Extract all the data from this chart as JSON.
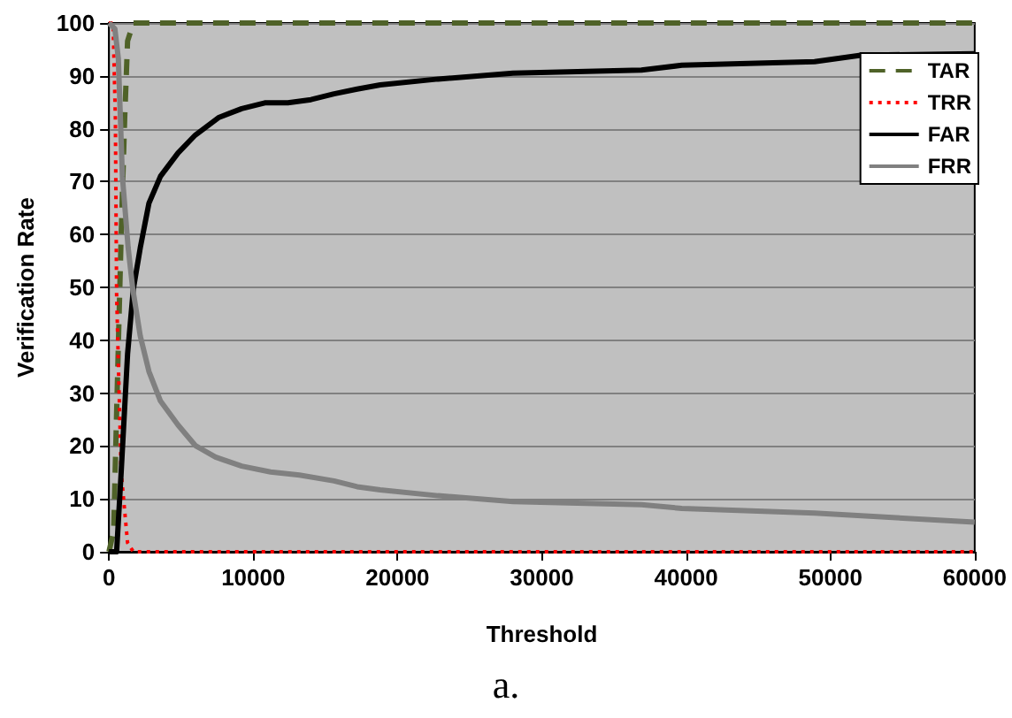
{
  "chart_data": {
    "type": "line",
    "xlabel": "Threshold",
    "ylabel": "Verification Rate",
    "annotations": [
      "a."
    ],
    "xlim": [
      0,
      60000
    ],
    "xticks": [
      0,
      10000,
      20000,
      30000,
      40000,
      50000,
      60000
    ],
    "ylim": [
      0,
      100
    ],
    "yticks": [
      0,
      10,
      20,
      30,
      40,
      50,
      60,
      70,
      80,
      90,
      100
    ],
    "grid": "y",
    "legend": "top right",
    "series": [
      {
        "name": "TAR",
        "color": "#4f6228",
        "line_style": "dashed",
        "x": [
          0,
          325,
          530,
          845,
          1090,
          1290,
          1690,
          60000
        ],
        "values": [
          0,
          3.9,
          26.3,
          59.8,
          82,
          96.6,
          100,
          100
        ]
      },
      {
        "name": "TRR",
        "color": "#ff0000",
        "line_style": "dotted",
        "x": [
          0,
          285,
          445,
          530,
          845,
          1290,
          1690,
          60000
        ],
        "values": [
          100,
          100,
          82,
          48.6,
          15,
          1.7,
          0,
          0
        ]
      },
      {
        "name": "FAR",
        "color": "#000000",
        "line_style": "solid",
        "x": [
          0,
          530,
          845,
          1290,
          1690,
          2170,
          2770,
          3570,
          4780,
          5980,
          7590,
          9200,
          10800,
          12400,
          14000,
          15600,
          17200,
          18800,
          22800,
          28000,
          36900,
          39700,
          48900,
          52100,
          60000
        ],
        "values": [
          0,
          0,
          15,
          37.4,
          49.7,
          57.5,
          65.9,
          71,
          75.4,
          78.8,
          82.1,
          83.8,
          84.9,
          84.9,
          85.5,
          86.6,
          87.5,
          88.3,
          89.4,
          90.5,
          91.1,
          92,
          92.7,
          93.9,
          94.2
        ]
      },
      {
        "name": "FRR",
        "color": "#808080",
        "line_style": "solid",
        "x": [
          0,
          410,
          650,
          930,
          1330,
          1650,
          2170,
          2770,
          3570,
          4780,
          5980,
          7380,
          9200,
          11200,
          13200,
          15600,
          17200,
          18800,
          22800,
          28000,
          36900,
          39700,
          48900,
          60000
        ],
        "values": [
          100,
          98.9,
          93.3,
          71,
          57.5,
          49.7,
          40.8,
          34.1,
          28.5,
          24,
          20.1,
          17.9,
          16.2,
          15.1,
          14.5,
          13.4,
          12.3,
          11.7,
          10.6,
          9.5,
          8.9,
          8.2,
          7.3,
          5.6
        ]
      }
    ]
  }
}
